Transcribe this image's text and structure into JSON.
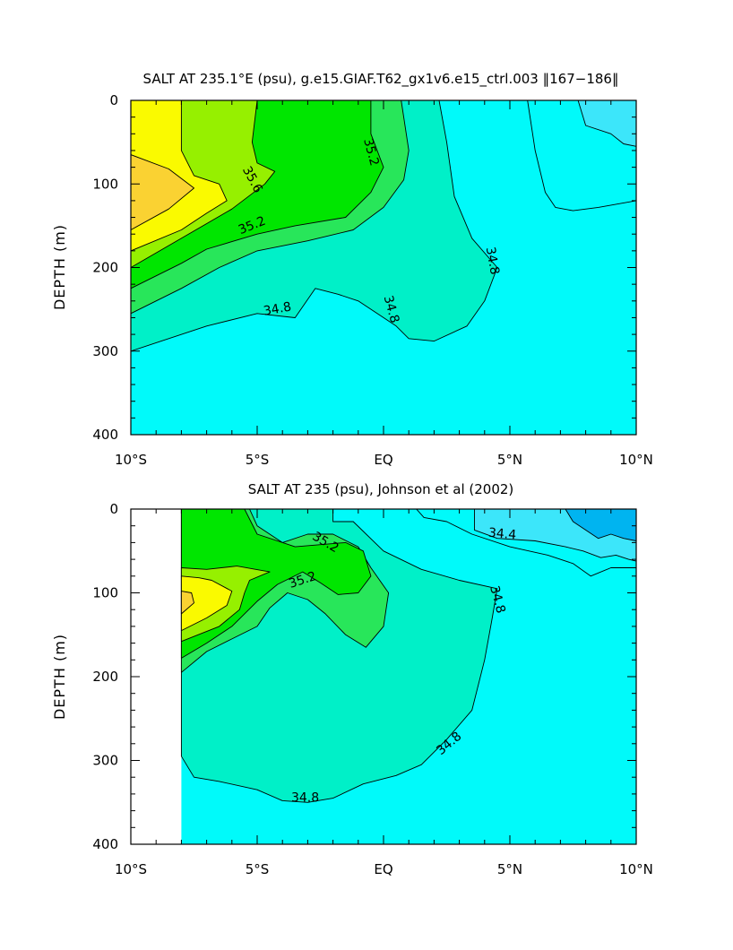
{
  "colors": {
    "lt_34_4": "#00b4f0",
    "c34_4_34_6": "#3ce6fa",
    "c34_6_34_8": "#00fafa",
    "c34_8_35_0": "#00f0c8",
    "c35_0_35_2": "#28e65a",
    "c35_2_35_4": "#00e600",
    "c35_4_35_6": "#96f000",
    "c35_6_35_8": "#fafa00",
    "gt_35_8": "#fad232"
  },
  "chart_data": [
    {
      "type": "contour",
      "title": "SALT AT 235.1°E (psu), g.e15.GIAF.T62_gx1v6.e15_ctrl.003 ‖167−186‖",
      "xlabel": "",
      "ylabel": "DEPTH (m)",
      "x_ticks": [
        "10°S",
        "5°S",
        "EQ",
        "5°N",
        "10°N"
      ],
      "x_tick_values": [
        -10,
        -5,
        0,
        5,
        10
      ],
      "y_ticks": [
        "0",
        "100",
        "200",
        "300",
        "400"
      ],
      "y_tick_values": [
        0,
        100,
        200,
        300,
        400
      ],
      "xlim": [
        -10,
        10
      ],
      "ylim": [
        400,
        0
      ],
      "contour_interval": 0.2,
      "contour_labels": [
        {
          "text": "35.6",
          "lat": -5.2,
          "depth": 95,
          "angle": 62
        },
        {
          "text": "35.2",
          "lat": -5.2,
          "depth": 150,
          "angle": -22
        },
        {
          "text": "35.2",
          "lat": -0.5,
          "depth": 62,
          "angle": 75
        },
        {
          "text": "34.8",
          "lat": -4.2,
          "depth": 250,
          "angle": -10
        },
        {
          "text": "34.8",
          "lat": 0.3,
          "depth": 250,
          "angle": 75
        },
        {
          "text": "34.8",
          "lat": 4.3,
          "depth": 192,
          "angle": 80
        }
      ],
      "regions": [
        {
          "range": "34.8-35.0",
          "color_key": "c34_8_35_0",
          "points": [
            [
              -10,
              300
            ],
            [
              -7,
              270
            ],
            [
              -5,
              255
            ],
            [
              -3.5,
              260
            ],
            [
              -2.7,
              225
            ],
            [
              -1.8,
              232
            ],
            [
              -1,
              240
            ],
            [
              0.5,
              270
            ],
            [
              1,
              285
            ],
            [
              2,
              288
            ],
            [
              3.3,
              270
            ],
            [
              4,
              240
            ],
            [
              4.5,
              200
            ],
            [
              3.5,
              165
            ],
            [
              2.8,
              115
            ],
            [
              2.5,
              50
            ],
            [
              2.2,
              0
            ],
            [
              -10,
              0
            ]
          ]
        },
        {
          "range": "35.0-35.2",
          "color_key": "c35_0_35_2",
          "points": [
            [
              -10,
              255
            ],
            [
              -8,
              225
            ],
            [
              -6.5,
              200
            ],
            [
              -5,
              180
            ],
            [
              -3,
              168
            ],
            [
              -1.2,
              155
            ],
            [
              0,
              128
            ],
            [
              0.8,
              95
            ],
            [
              1,
              60
            ],
            [
              0.7,
              0
            ],
            [
              -10,
              0
            ]
          ]
        },
        {
          "range": "35.2-35.4",
          "color_key": "c35_2_35_4",
          "points": [
            [
              -10,
              225
            ],
            [
              -8,
              195
            ],
            [
              -7,
              178
            ],
            [
              -5,
              160
            ],
            [
              -3.5,
              150
            ],
            [
              -1.5,
              140
            ],
            [
              -0.5,
              110
            ],
            [
              0,
              80
            ],
            [
              -0.5,
              40
            ],
            [
              -0.5,
              0
            ],
            [
              -10,
              0
            ]
          ]
        },
        {
          "range": "35.4-35.6",
          "color_key": "c35_4_35_6",
          "points": [
            [
              -10,
              200
            ],
            [
              -8,
              165
            ],
            [
              -6,
              130
            ],
            [
              -4.7,
              100
            ],
            [
              -4.3,
              85
            ],
            [
              -5,
              75
            ],
            [
              -5.2,
              50
            ],
            [
              -5,
              0
            ],
            [
              -10,
              0
            ]
          ]
        },
        {
          "range": "35.6-35.8",
          "color_key": "c35_6_35_8",
          "points": [
            [
              -10,
              180
            ],
            [
              -8,
              155
            ],
            [
              -7,
              135
            ],
            [
              -6.2,
              120
            ],
            [
              -6.5,
              100
            ],
            [
              -7.5,
              90
            ],
            [
              -8,
              60
            ],
            [
              -8,
              0
            ],
            [
              -10,
              0
            ]
          ]
        },
        {
          "range": ">35.8",
          "color_key": "gt_35_8",
          "points": [
            [
              -10,
              155
            ],
            [
              -8.5,
              130
            ],
            [
              -7.5,
              105
            ],
            [
              -8.5,
              82
            ],
            [
              -10,
              65
            ]
          ]
        },
        {
          "range": "34.6-34.8",
          "color_key": "c34_6_34_8",
          "points": [
            [
              5.7,
              0
            ],
            [
              6,
              60
            ],
            [
              6.4,
              110
            ],
            [
              6.8,
              128
            ],
            [
              7.5,
              132
            ],
            [
              8.5,
              128
            ],
            [
              10,
              120
            ],
            [
              10,
              0
            ]
          ]
        },
        {
          "range": "34.4-34.6",
          "color_key": "c34_4_34_6",
          "points": [
            [
              7.7,
              0
            ],
            [
              8,
              30
            ],
            [
              9,
              40
            ],
            [
              9.5,
              52
            ],
            [
              10,
              55
            ],
            [
              10,
              0
            ]
          ]
        }
      ]
    },
    {
      "type": "contour",
      "title": "SALT AT 235 (psu), Johnson et al (2002)",
      "xlabel": "",
      "ylabel": "DEPTH (m)",
      "x_ticks": [
        "10°S",
        "5°S",
        "EQ",
        "5°N",
        "10°N"
      ],
      "x_tick_values": [
        -10,
        -5,
        0,
        5,
        10
      ],
      "y_ticks": [
        "0",
        "100",
        "200",
        "300",
        "400"
      ],
      "y_tick_values": [
        0,
        100,
        200,
        300,
        400
      ],
      "xlim": [
        -10,
        10
      ],
      "ylim": [
        400,
        0
      ],
      "data_start_lat": -8,
      "contour_interval": 0.2,
      "contour_labels": [
        {
          "text": "35.2",
          "lat": -2.3,
          "depth": 40,
          "angle": 30
        },
        {
          "text": "35.2",
          "lat": -3.2,
          "depth": 85,
          "angle": -18
        },
        {
          "text": "34.4",
          "lat": 4.7,
          "depth": 30,
          "angle": 5
        },
        {
          "text": "34.8",
          "lat": 4.5,
          "depth": 108,
          "angle": 75
        },
        {
          "text": "34.8",
          "lat": 2.6,
          "depth": 280,
          "angle": -40
        },
        {
          "text": "34.8",
          "lat": -3.1,
          "depth": 345,
          "angle": 0
        }
      ],
      "regions": [
        {
          "range": "34.8-35.0",
          "color_key": "c34_8_35_0",
          "points": [
            [
              -8,
              295
            ],
            [
              -7.5,
              320
            ],
            [
              -6.5,
              325
            ],
            [
              -5,
              335
            ],
            [
              -4,
              348
            ],
            [
              -3,
              350
            ],
            [
              -2,
              345
            ],
            [
              -0.8,
              328
            ],
            [
              0.5,
              318
            ],
            [
              1.5,
              305
            ],
            [
              2.5,
              275
            ],
            [
              3.5,
              240
            ],
            [
              4,
              180
            ],
            [
              4.3,
              130
            ],
            [
              4.5,
              95
            ],
            [
              3,
              85
            ],
            [
              1.5,
              72
            ],
            [
              0,
              50
            ],
            [
              -1.2,
              15
            ],
            [
              -2,
              15
            ],
            [
              -2,
              0
            ],
            [
              -8,
              0
            ]
          ]
        },
        {
          "range": "35.0-35.2",
          "color_key": "c35_0_35_2",
          "points": [
            [
              -8,
              195
            ],
            [
              -7,
              170
            ],
            [
              -6,
              155
            ],
            [
              -5,
              140
            ],
            [
              -4.5,
              118
            ],
            [
              -3.8,
              100
            ],
            [
              -3,
              108
            ],
            [
              -2.3,
              125
            ],
            [
              -1.5,
              150
            ],
            [
              -0.7,
              165
            ],
            [
              0,
              140
            ],
            [
              0.2,
              100
            ],
            [
              -0.5,
              70
            ],
            [
              -1,
              45
            ],
            [
              -2,
              30
            ],
            [
              -3,
              30
            ],
            [
              -4,
              40
            ],
            [
              -5,
              20
            ],
            [
              -5.3,
              0
            ],
            [
              -8,
              0
            ]
          ]
        },
        {
          "range": "35.2-35.4",
          "color_key": "c35_2_35_4",
          "points": [
            [
              -8,
              178
            ],
            [
              -7,
              160
            ],
            [
              -6,
              140
            ],
            [
              -5,
              110
            ],
            [
              -4.2,
              90
            ],
            [
              -3.2,
              75
            ],
            [
              -2.5,
              88
            ],
            [
              -1.8,
              102
            ],
            [
              -1,
              100
            ],
            [
              -0.5,
              80
            ],
            [
              -0.8,
              50
            ],
            [
              -1.5,
              40
            ],
            [
              -3.5,
              45
            ],
            [
              -5,
              30
            ],
            [
              -5.5,
              0
            ],
            [
              -8,
              0
            ]
          ]
        },
        {
          "range": "35.4-35.6",
          "color_key": "c35_4_35_6",
          "points": [
            [
              -8,
              158
            ],
            [
              -6.5,
              140
            ],
            [
              -5.7,
              120
            ],
            [
              -5.5,
              100
            ],
            [
              -5.3,
              85
            ],
            [
              -4.5,
              75
            ],
            [
              -5.8,
              68
            ],
            [
              -7,
              72
            ],
            [
              -8,
              70
            ]
          ]
        },
        {
          "range": "35.6-35.8",
          "color_key": "c35_6_35_8",
          "points": [
            [
              -8,
              145
            ],
            [
              -7,
              130
            ],
            [
              -6.2,
              115
            ],
            [
              -6,
              98
            ],
            [
              -6.8,
              85
            ],
            [
              -7.3,
              82
            ],
            [
              -8,
              80
            ]
          ]
        },
        {
          "range": ">35.8",
          "color_key": "gt_35_8",
          "points": [
            [
              -8,
              125
            ],
            [
              -7.5,
              112
            ],
            [
              -7.6,
              100
            ],
            [
              -8,
              98
            ]
          ]
        },
        {
          "range": "34.6-34.8",
          "color_key": "c34_6_34_8",
          "points": [
            [
              1.3,
              0
            ],
            [
              1.6,
              10
            ],
            [
              2.5,
              15
            ],
            [
              3.5,
              30
            ],
            [
              5,
              45
            ],
            [
              6.5,
              55
            ],
            [
              7.5,
              65
            ],
            [
              8.2,
              80
            ],
            [
              9,
              70
            ],
            [
              10,
              70
            ],
            [
              10,
              0
            ]
          ]
        },
        {
          "range": "34.4-34.6",
          "color_key": "c34_4_34_6",
          "points": [
            [
              3.6,
              0
            ],
            [
              3.6,
              25
            ],
            [
              4.5,
              35
            ],
            [
              6,
              38
            ],
            [
              7.2,
              45
            ],
            [
              7.9,
              50
            ],
            [
              8.6,
              58
            ],
            [
              9.2,
              55
            ],
            [
              9.7,
              60
            ],
            [
              10,
              62
            ],
            [
              10,
              0
            ]
          ]
        },
        {
          "range": "<34.4",
          "color_key": "lt_34_4",
          "points": [
            [
              7.2,
              0
            ],
            [
              7.5,
              15
            ],
            [
              8,
              25
            ],
            [
              8.5,
              35
            ],
            [
              9,
              30
            ],
            [
              9.5,
              35
            ],
            [
              10,
              38
            ],
            [
              10,
              0
            ]
          ]
        }
      ]
    }
  ]
}
